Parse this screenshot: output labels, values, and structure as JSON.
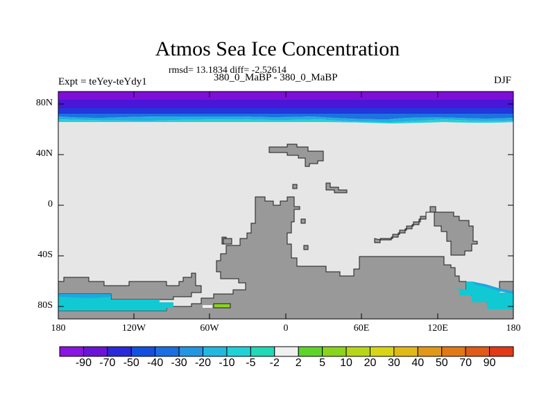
{
  "title": "Atmos Sea Ice Concentration",
  "stats_line": "rmsd= 13.1834 diff= -2.52614",
  "experiment_label": "Expt = teYey-teYdy1",
  "period_label": "380_0_MaBP - 380_0_MaBP",
  "season_label": "DJF",
  "map": {
    "projection": "cylindrical-equidistant",
    "lon_range": [
      -180,
      180
    ],
    "lat_range": [
      -90,
      90
    ],
    "y_ticks": [
      "80N",
      "40N",
      "0",
      "40S",
      "80S"
    ],
    "x_ticks": [
      "180",
      "120W",
      "60W",
      "0",
      "60E",
      "120E",
      "180"
    ],
    "land_color": "#999999",
    "ocean_color": "#e6e6e6",
    "arctic_band_colors": [
      "#7d0fd6",
      "#4a16d8",
      "#2038dc",
      "#1d72e0",
      "#22aee0",
      "#26d0d6"
    ],
    "antarctic_shelf_color": "#11c9d3"
  },
  "colorbar": {
    "labels": [
      "-90",
      "-70",
      "-50",
      "-40",
      "-30",
      "-20",
      "-10",
      "-5",
      "-2",
      "2",
      "5",
      "10",
      "20",
      "30",
      "40",
      "50",
      "70",
      "90"
    ],
    "colors": [
      "#8a14e0",
      "#6a14d8",
      "#2a28d8",
      "#1450e0",
      "#1d6ee2",
      "#2296e2",
      "#22b8e0",
      "#20d2d8",
      "#22d8b6",
      "#f0f0f0",
      "#5ed42a",
      "#8ad41e",
      "#b8d618",
      "#d8d418",
      "#e0b818",
      "#e09818",
      "#e07818",
      "#e05a18",
      "#e03a18"
    ]
  }
}
